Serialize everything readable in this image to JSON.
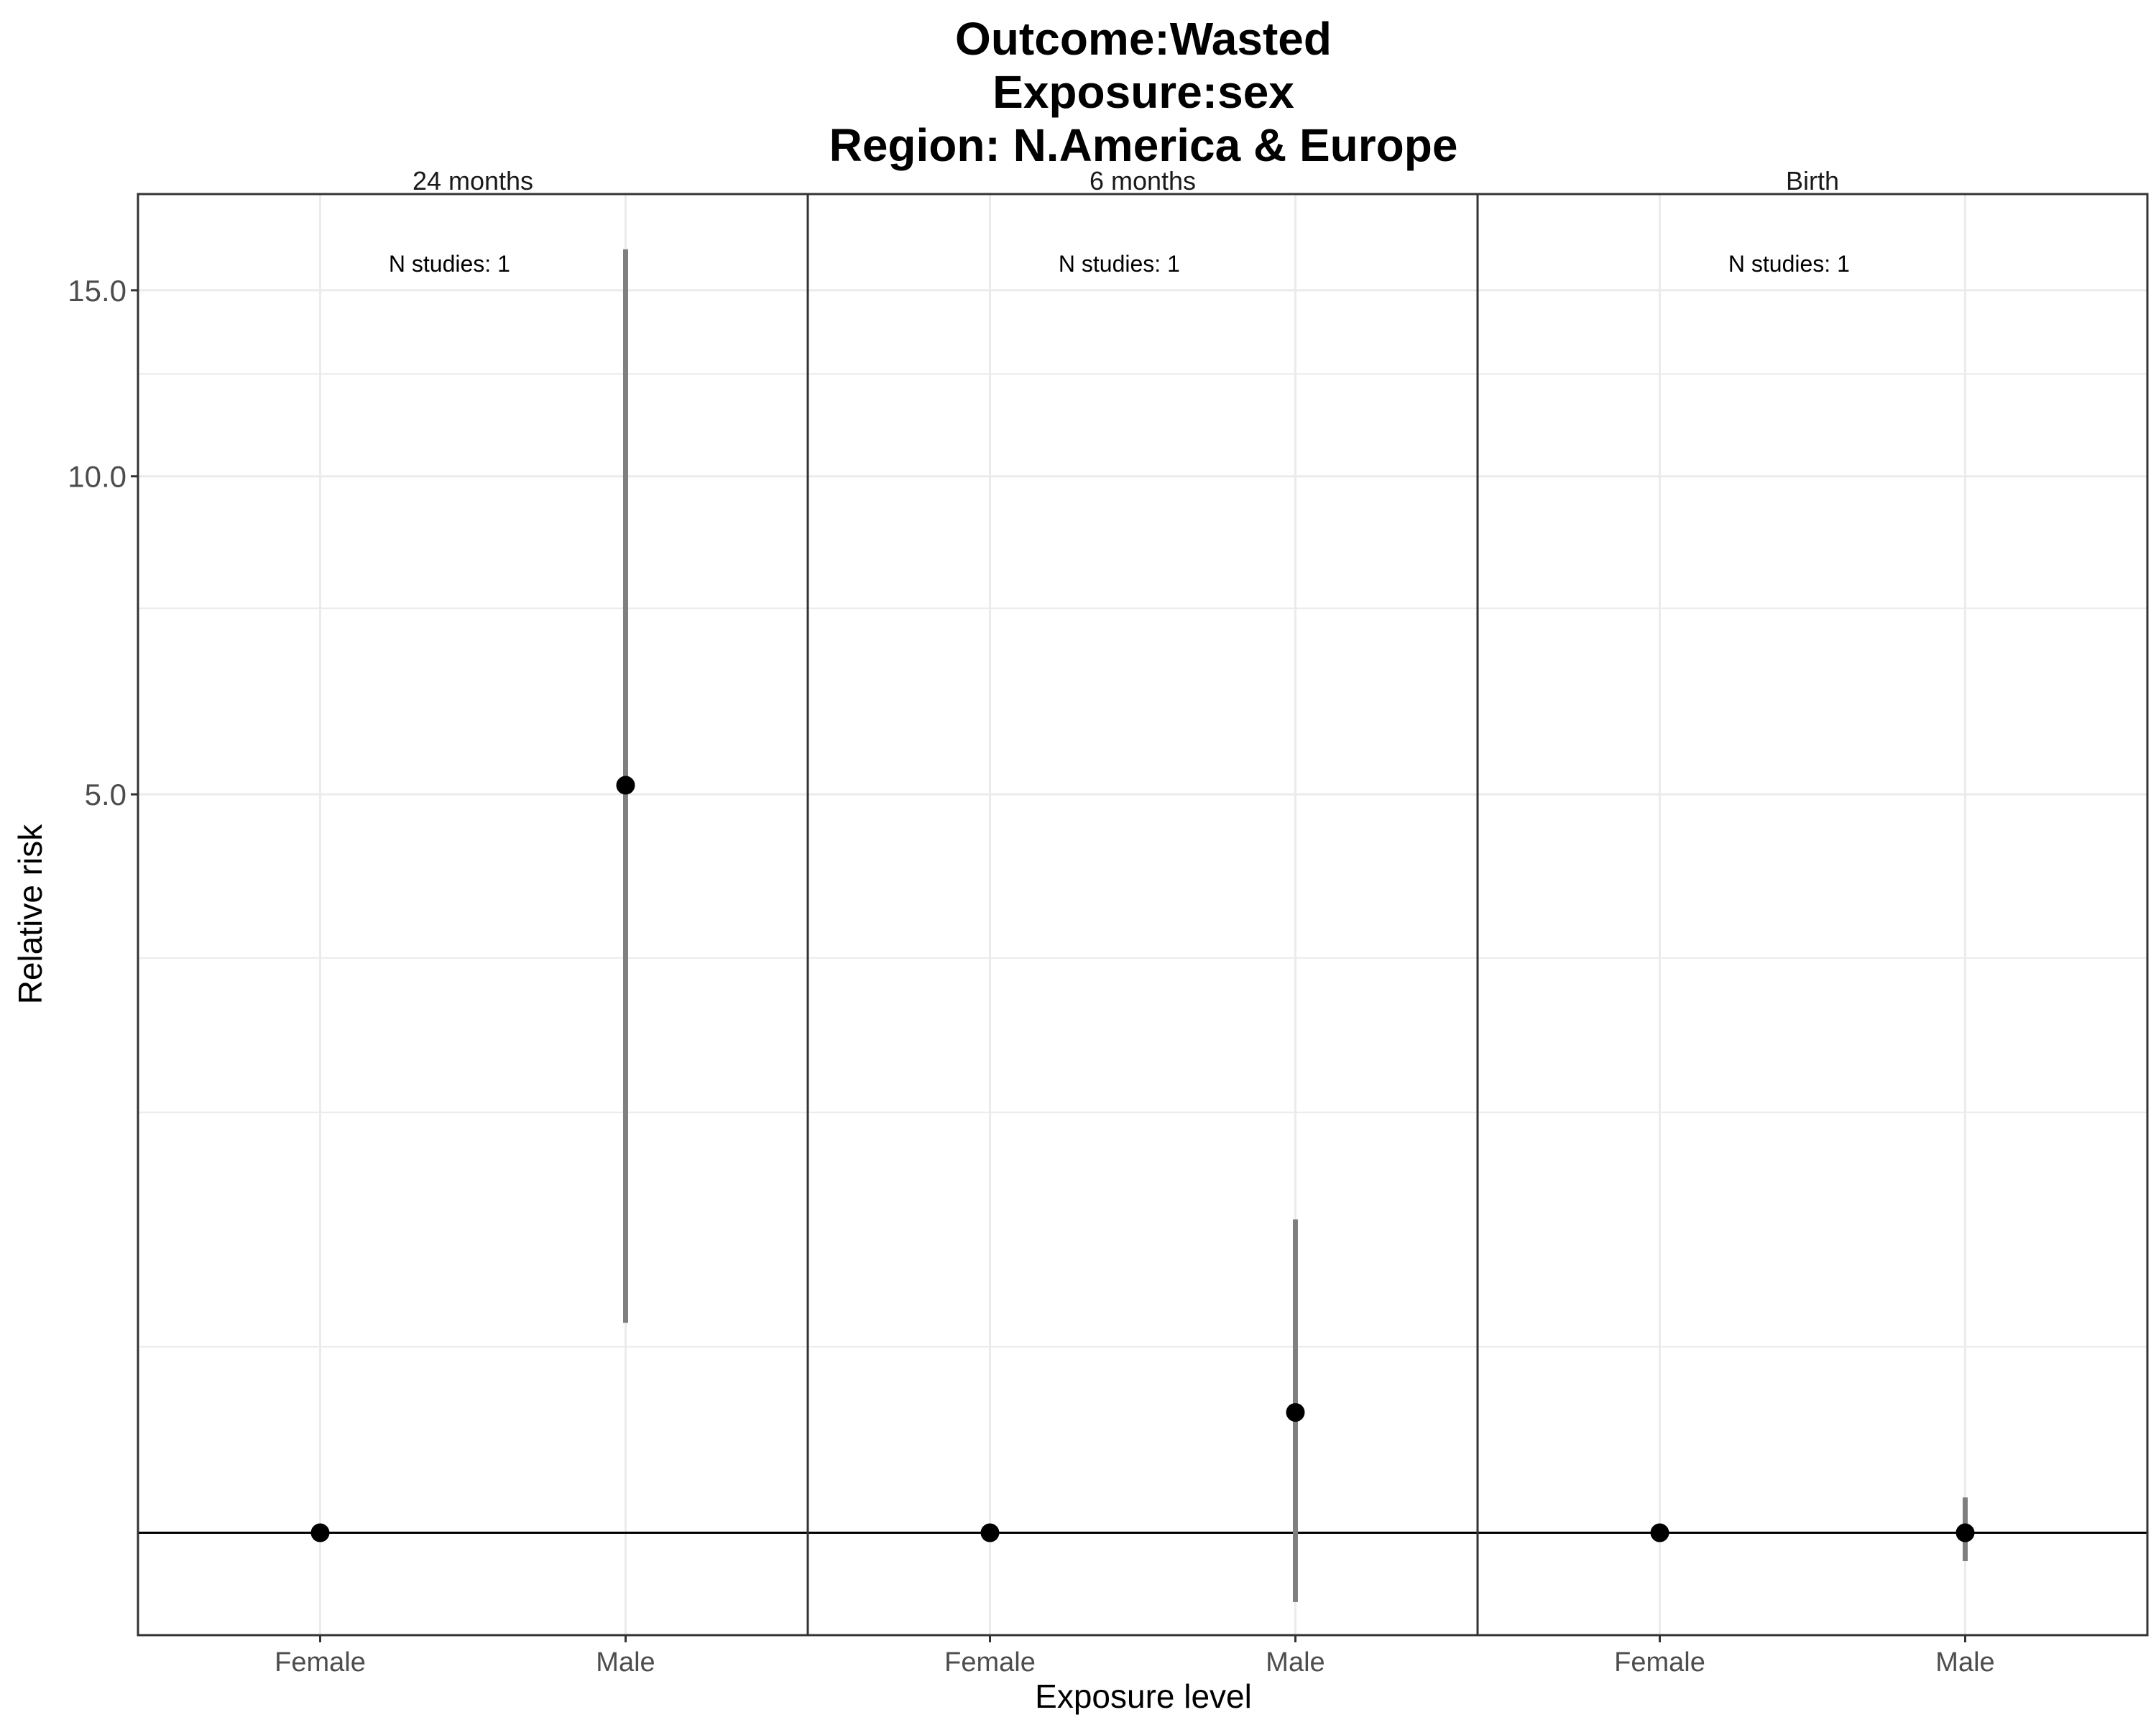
{
  "chart_data": {
    "type": "scatter",
    "title_lines": [
      "Outcome:Wasted",
      "Exposure:sex",
      "Region: N.America & Europe"
    ],
    "xlabel": "Exposure level",
    "ylabel": "Relative risk",
    "y_scale": "log",
    "ylim": [
      0.8,
      18.5
    ],
    "y_ticks": [
      5.0,
      10.0,
      15.0
    ],
    "y_tick_labels": [
      "5.0",
      "10.0",
      "15.0"
    ],
    "y_minor_gridlines": [
      1.5,
      2.5,
      3.5,
      7.5,
      12.5
    ],
    "reference_line": 1,
    "categories": [
      "Female",
      "Male"
    ],
    "grid": true,
    "panels": [
      {
        "label": "24 months",
        "annotation": "N studies: 1",
        "points": [
          {
            "category": "Female",
            "estimate": 1.0,
            "ci_lower": null,
            "ci_upper": null
          },
          {
            "category": "Male",
            "estimate": 5.1,
            "ci_lower": 1.58,
            "ci_upper": 16.4
          }
        ]
      },
      {
        "label": "6 months",
        "annotation": "N studies: 1",
        "points": [
          {
            "category": "Female",
            "estimate": 1.0,
            "ci_lower": null,
            "ci_upper": null
          },
          {
            "category": "Male",
            "estimate": 1.3,
            "ci_lower": 0.86,
            "ci_upper": 1.98
          }
        ]
      },
      {
        "label": "Birth",
        "annotation": "N studies: 1",
        "points": [
          {
            "category": "Female",
            "estimate": 1.0,
            "ci_lower": null,
            "ci_upper": null
          },
          {
            "category": "Male",
            "estimate": 1.0,
            "ci_lower": 0.94,
            "ci_upper": 1.08
          }
        ]
      }
    ],
    "colors": {
      "point": "#000000",
      "errorbar": "#7f7f7f",
      "grid": "#ebebeb",
      "panel_border": "#333333",
      "reference_line": "#000000"
    }
  }
}
